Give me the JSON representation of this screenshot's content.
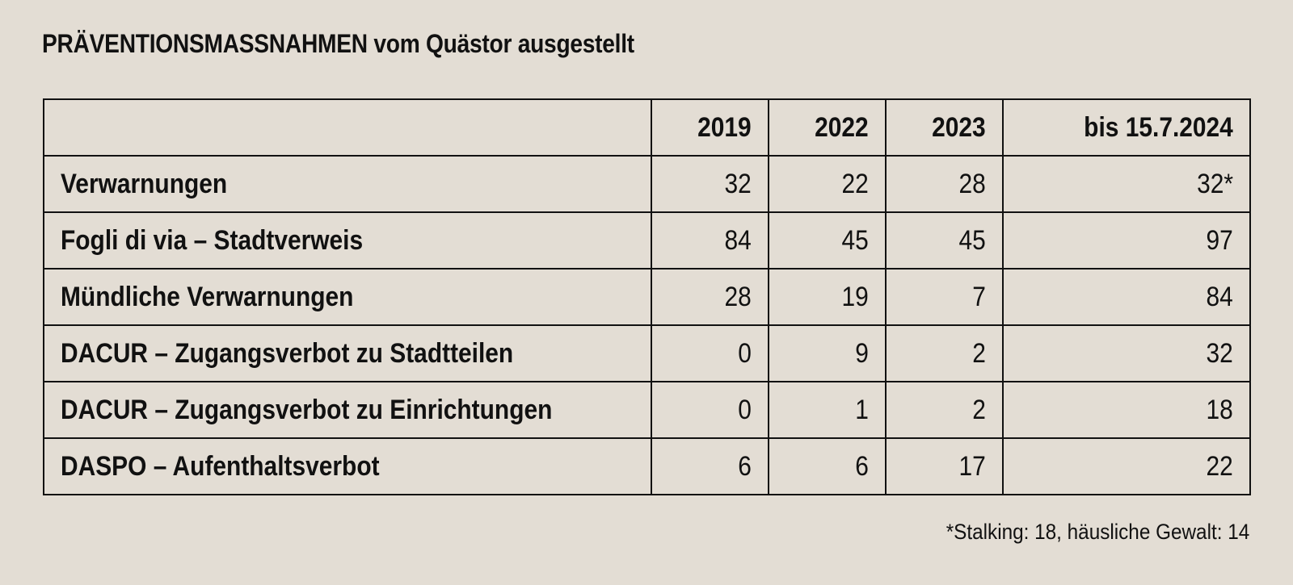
{
  "title": "PRÄVENTIONSMASSNAHMEN vom Quästor ausgestellt",
  "chart_data": {
    "type": "table",
    "columns": [
      "",
      "2019",
      "2022",
      "2023",
      "bis 15.7.2024"
    ],
    "rows": [
      {
        "label": "Verwarnungen",
        "values": [
          "32",
          "22",
          "28",
          "32*"
        ]
      },
      {
        "label": "Fogli di via – Stadtverweis",
        "values": [
          "84",
          "45",
          "45",
          "97"
        ]
      },
      {
        "label": "Mündliche Verwarnungen",
        "values": [
          "28",
          "19",
          "7",
          "84"
        ]
      },
      {
        "label": "DACUR – Zugangsverbot zu Stadtteilen",
        "values": [
          "0",
          "9",
          "2",
          "32"
        ]
      },
      {
        "label": "DACUR – Zugangsverbot zu Einrichtungen",
        "values": [
          "0",
          "1",
          "2",
          "18"
        ]
      },
      {
        "label": "DASPO – Aufenthaltsverbot",
        "values": [
          "6",
          "6",
          "17",
          "22"
        ]
      }
    ]
  },
  "footnote": "*Stalking: 18, häusliche Gewalt: 14",
  "colors": {
    "background": "#e3ddd4",
    "text": "#111111",
    "border": "#111111"
  }
}
